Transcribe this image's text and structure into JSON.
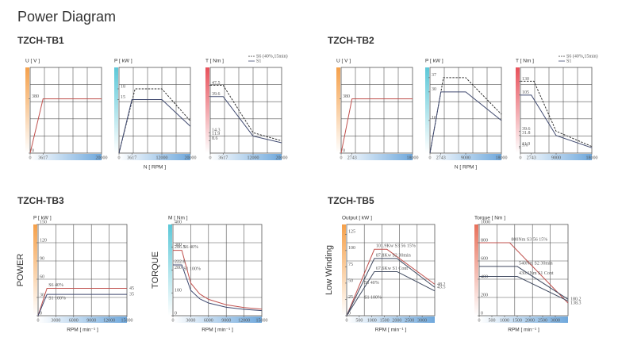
{
  "title": "Power Diagram",
  "sections": [
    "TZCH-TB1",
    "TZCH-TB2",
    "TZCH-TB3",
    "TZCH-TB5"
  ],
  "chart_data": [
    {
      "type": "line",
      "ylabel": "U [ V ]",
      "accent": "#f5a04a",
      "xlim": [
        0,
        20000
      ],
      "ylim": [
        0,
        600
      ],
      "xticks": [
        0,
        3617,
        20000
      ],
      "yticks": [
        0,
        380
      ],
      "series": [
        {
          "color": "#c0504d",
          "x": [
            0,
            3617,
            20000
          ],
          "values": [
            0,
            380,
            380
          ]
        }
      ]
    },
    {
      "type": "line",
      "ylabel": "P [ kW ]",
      "xlabel": "N [ RPM ]",
      "accent": "#5cc8d8",
      "xlim": [
        0,
        20000
      ],
      "ylim": [
        0,
        24
      ],
      "xticks": [
        0,
        3617,
        12000,
        20000
      ],
      "yticks": [
        15,
        18
      ],
      "series": [
        {
          "color": "#333333",
          "dash": true,
          "x": [
            0,
            4500,
            12000,
            20000
          ],
          "values": [
            0,
            18,
            18,
            9
          ]
        },
        {
          "color": "#404a70",
          "x": [
            0,
            3617,
            12000,
            20000
          ],
          "values": [
            0,
            15,
            15,
            7.5
          ]
        }
      ]
    },
    {
      "type": "line",
      "ylabel": "T [ Nm ]",
      "accent": "#e8505a",
      "legend": "top-right",
      "xlim": [
        0,
        20000
      ],
      "ylim": [
        0,
        60
      ],
      "xticks": [
        0,
        3617,
        12000,
        20000
      ],
      "yticks": [
        47.5,
        39.6,
        14.3,
        11.9,
        8.6
      ],
      "series": [
        {
          "name": "S6 (40%,15min)",
          "color": "#333333",
          "dash": true,
          "x": [
            0,
            3617,
            12000,
            20000
          ],
          "values": [
            47.5,
            47.5,
            14.3,
            8.6
          ]
        },
        {
          "name": "S1",
          "color": "#404a70",
          "x": [
            0,
            3617,
            12000,
            20000
          ],
          "values": [
            39.6,
            39.6,
            11.9,
            7.2
          ]
        }
      ]
    },
    {
      "type": "line",
      "ylabel": "U [ V ]",
      "accent": "#f5a04a",
      "xlim": [
        0,
        18000
      ],
      "ylim": [
        0,
        600
      ],
      "xticks": [
        0,
        2743,
        18000
      ],
      "yticks": [
        0,
        380
      ],
      "series": [
        {
          "color": "#c0504d",
          "x": [
            0,
            2743,
            18000
          ],
          "values": [
            0,
            380,
            380
          ]
        }
      ]
    },
    {
      "type": "line",
      "ylabel": "P [ kW ]",
      "xlabel": "N [ RPM ]",
      "accent": "#5cc8d8",
      "xlim": [
        0,
        18000
      ],
      "ylim": [
        0,
        42
      ],
      "xticks": [
        0,
        2743,
        9000,
        18000
      ],
      "yticks": [
        37,
        30,
        16
      ],
      "series": [
        {
          "color": "#333333",
          "dash": true,
          "x": [
            0,
            3400,
            9000,
            18000
          ],
          "values": [
            0,
            37,
            37,
            19
          ]
        },
        {
          "color": "#404a70",
          "x": [
            0,
            2743,
            9000,
            18000
          ],
          "values": [
            0,
            30,
            30,
            16
          ]
        }
      ]
    },
    {
      "type": "line",
      "ylabel": "T [ Nm ]",
      "accent": "#e8505a",
      "legend": "top-right",
      "xlim": [
        0,
        18000
      ],
      "ylim": [
        0,
        155
      ],
      "xticks": [
        0,
        2743,
        9000,
        18000
      ],
      "yticks": [
        130,
        105,
        39.6,
        31.8,
        11.9,
        9.6
      ],
      "series": [
        {
          "name": "S6 (40%,15min)",
          "color": "#333333",
          "dash": true,
          "x": [
            0,
            3400,
            9000,
            18000
          ],
          "values": [
            130,
            130,
            39.6,
            11.9
          ]
        },
        {
          "name": "S1",
          "color": "#404a70",
          "x": [
            0,
            2743,
            9000,
            18000
          ],
          "values": [
            105,
            105,
            31.8,
            9.6
          ]
        }
      ]
    },
    {
      "type": "line",
      "ylabel": "P [ kW ]",
      "side_label": "POWER",
      "xlabel": "RPM [ min⁻¹ ]",
      "accent": "#f5a04a",
      "legend": "inline",
      "xlim": [
        0,
        15000
      ],
      "ylim": [
        0,
        150
      ],
      "xticks": [
        0,
        3000,
        6000,
        9000,
        12000,
        15000
      ],
      "yticks": [
        0,
        30,
        60,
        90,
        120,
        150
      ],
      "series": [
        {
          "name": "S6 40%",
          "color": "#c0504d",
          "end_label": true,
          "x": [
            0,
            1500,
            15000
          ],
          "values": [
            0,
            45,
            45
          ]
        },
        {
          "name": "S1 100%",
          "color": "#404a70",
          "end_label": true,
          "x": [
            0,
            1500,
            15000
          ],
          "values": [
            0,
            35,
            35
          ]
        }
      ]
    },
    {
      "type": "line",
      "ylabel": "M [ Nm ]",
      "side_label": "TORQUE",
      "xlabel": "RPM [ min⁻¹ ]",
      "accent": "#5cc8d8",
      "legend": "inline",
      "xlim": [
        0,
        15000
      ],
      "ylim": [
        0,
        400
      ],
      "xticks": [
        0,
        3000,
        6000,
        9000,
        12000,
        15000
      ],
      "yticks": [
        0,
        100,
        200,
        300,
        400
      ],
      "series": [
        {
          "name": "S6 40%",
          "color": "#c0504d",
          "start_label": true,
          "x": [
            0,
            1500,
            3000,
            4500,
            6000,
            9000,
            12000,
            15000
          ],
          "values": [
            286.5,
            286.5,
            143.2,
            95.5,
            71.6,
            47.7,
            35.8,
            28.6
          ]
        },
        {
          "name": "S1 100%",
          "color": "#404a70",
          "start_label": true,
          "x": [
            0,
            1500,
            3000,
            4500,
            6000,
            9000,
            12000,
            15000
          ],
          "values": [
            222.8,
            222.8,
            111.4,
            74.3,
            55.7,
            37.1,
            27.9,
            22.3
          ]
        }
      ]
    },
    {
      "type": "line",
      "ylabel": "Output [ kW ]",
      "side_label": "Low Winding",
      "xlabel": "RPM [ min⁻¹ ]",
      "accent": "#f5a04a",
      "legend": "inline",
      "notes": [
        "56 40%",
        "S1 100%"
      ],
      "xlim": [
        0,
        3500
      ],
      "ylim": [
        0,
        140
      ],
      "xticks": [
        0,
        500,
        1000,
        1500,
        2000,
        2500,
        3000
      ],
      "yticks": [
        0,
        25,
        50,
        75,
        100,
        125
      ],
      "series": [
        {
          "name": "101.9Kw S3 56 15%",
          "color": "#c0504d",
          "end_label": true,
          "x": [
            0,
            1100,
            1600,
            3500
          ],
          "values": [
            0,
            101.9,
            101.9,
            48.2
          ]
        },
        {
          "name": "87.8Kw S2 30min",
          "color": "#404a60",
          "end_label": true,
          "x": [
            0,
            1100,
            2000,
            3500
          ],
          "values": [
            0,
            87.8,
            87.8,
            43.5
          ]
        },
        {
          "name": "67.6Kw S1 Cont",
          "color": "#404a60",
          "x": [
            0,
            1100,
            2000,
            3500
          ],
          "values": [
            0,
            67.6,
            67.6,
            38
          ]
        }
      ]
    },
    {
      "type": "line",
      "ylabel": "Torque [ Nm ]",
      "xlabel": "RPM [ min⁻¹ ]",
      "accent": "#e8705a",
      "legend": "inline",
      "xlim": [
        0,
        3500
      ],
      "ylim": [
        0,
        1000
      ],
      "xticks": [
        0,
        500,
        1000,
        1500,
        2000,
        2500,
        3000
      ],
      "yticks": [
        0,
        200,
        400,
        600,
        800,
        1000
      ],
      "series": [
        {
          "name": "800Nm S3 56 15%",
          "color": "#c0504d",
          "end_label": true,
          "x": [
            0,
            1200,
            3500
          ],
          "values": [
            800,
            800,
            138.3
          ]
        },
        {
          "name": "540Nm S2 30min",
          "color": "#404a60",
          "end_label": true,
          "x": [
            0,
            1500,
            3500
          ],
          "values": [
            540,
            540,
            180.2
          ]
        },
        {
          "name": "430.1Nm S1 Cont",
          "color": "#404a60",
          "x": [
            0,
            1500,
            3500
          ],
          "values": [
            430.1,
            430.1,
            160
          ]
        }
      ]
    }
  ]
}
